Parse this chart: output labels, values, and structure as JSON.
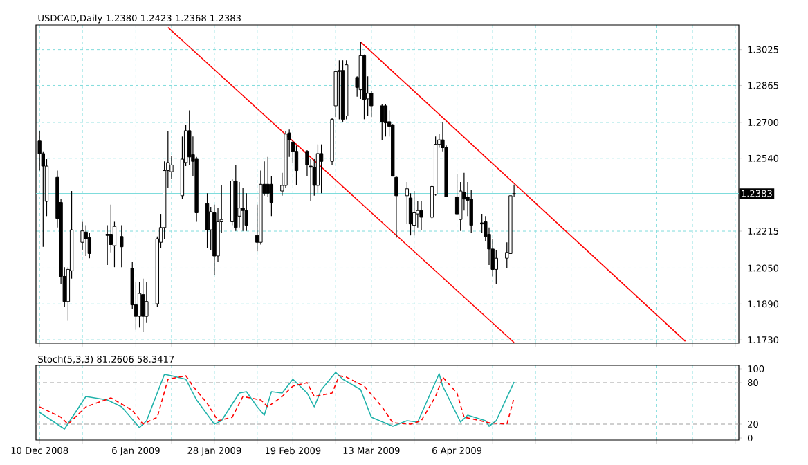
{
  "chart_data": [
    {
      "type": "candlestick",
      "title": "USDCAD,Daily 1.2380 1.2423 1.2368 1.2383",
      "x": [
        "2008-12-10",
        "2008-12-11",
        "2008-12-12",
        "2008-12-15",
        "2008-12-16",
        "2008-12-17",
        "2008-12-18",
        "2008-12-19",
        "2008-12-22",
        "2008-12-23",
        "2008-12-24",
        "2008-12-29",
        "2008-12-30",
        "2008-12-31",
        "2009-01-02",
        "2009-01-05",
        "2009-01-06",
        "2009-01-07",
        "2009-01-08",
        "2009-01-09",
        "2009-01-12",
        "2009-01-13",
        "2009-01-14",
        "2009-01-15",
        "2009-01-16",
        "2009-01-19",
        "2009-01-20",
        "2009-01-21",
        "2009-01-22",
        "2009-01-23",
        "2009-01-26",
        "2009-01-27",
        "2009-01-28",
        "2009-01-29",
        "2009-01-30",
        "2009-02-02",
        "2009-02-03",
        "2009-02-04",
        "2009-02-05",
        "2009-02-06",
        "2009-02-09",
        "2009-02-10",
        "2009-02-11",
        "2009-02-12",
        "2009-02-13",
        "2009-02-16",
        "2009-02-17",
        "2009-02-18",
        "2009-02-19",
        "2009-02-20",
        "2009-02-23",
        "2009-02-24",
        "2009-02-25",
        "2009-02-26",
        "2009-02-27",
        "2009-03-02",
        "2009-03-03",
        "2009-03-04",
        "2009-03-05",
        "2009-03-06",
        "2009-03-09",
        "2009-03-10",
        "2009-03-11",
        "2009-03-12",
        "2009-03-13",
        "2009-03-16",
        "2009-03-17",
        "2009-03-18",
        "2009-03-19",
        "2009-03-20",
        "2009-03-23",
        "2009-03-24",
        "2009-03-25",
        "2009-03-26",
        "2009-03-27",
        "2009-03-30",
        "2009-03-31",
        "2009-04-01",
        "2009-04-02",
        "2009-04-03",
        "2009-04-06",
        "2009-04-07",
        "2009-04-08",
        "2009-04-09",
        "2009-04-10",
        "2009-04-13",
        "2009-04-14",
        "2009-04-15",
        "2009-04-16",
        "2009-04-17",
        "2009-04-20",
        "2009-04-21",
        "2009-04-22"
      ],
      "ohlc": [
        [
          1.2617,
          1.2663,
          1.2485,
          1.2561
        ],
        [
          1.2561,
          1.2571,
          1.2145,
          1.2505
        ],
        [
          1.2348,
          1.2536,
          1.2282,
          1.2505
        ],
        [
          1.2455,
          1.2485,
          1.2231,
          1.2272
        ],
        [
          1.2343,
          1.2358,
          1.1977,
          1.2013
        ],
        [
          1.2013,
          1.2054,
          1.1876,
          1.1901
        ],
        [
          1.1901,
          1.2054,
          1.1815,
          1.2044
        ],
        [
          1.2038,
          1.2394,
          1.2003,
          1.2221
        ],
        [
          1.2165,
          1.2257,
          1.213,
          1.2216
        ],
        [
          1.2211,
          1.2241,
          1.2104,
          1.2181
        ],
        [
          1.2186,
          1.2206,
          1.2094,
          1.2115
        ],
        [
          1.2201,
          1.2241,
          1.2064,
          1.2196
        ],
        [
          1.2201,
          1.2333,
          1.212,
          1.2155
        ],
        [
          1.215,
          1.2257,
          1.2054,
          1.2236
        ],
        [
          1.2191,
          1.2241,
          1.2054,
          1.2145
        ],
        [
          1.2049,
          1.2079,
          1.1866,
          1.1886
        ],
        [
          1.1886,
          1.1988,
          1.1775,
          1.1835
        ],
        [
          1.1835,
          1.1988,
          1.1785,
          1.1937
        ],
        [
          1.1932,
          1.2003,
          1.1764,
          1.1835
        ],
        [
          1.1835,
          1.1988,
          1.1805,
          1.1901
        ],
        [
          1.1891,
          1.2191,
          1.1876,
          1.2181
        ],
        [
          1.2165,
          1.2292,
          1.214,
          1.2231
        ],
        [
          1.2231,
          1.2526,
          1.2181,
          1.2485
        ],
        [
          1.2485,
          1.2663,
          1.2409,
          1.2521
        ],
        [
          1.248,
          1.2551,
          1.245,
          1.251
        ],
        [
          1.2373,
          1.2637,
          1.2358,
          1.2536
        ],
        [
          1.2521,
          1.2688,
          1.2505,
          1.2663
        ],
        [
          1.2663,
          1.2754,
          1.251,
          1.2546
        ],
        [
          1.2556,
          1.2637,
          1.246,
          1.2526
        ],
        [
          1.2536,
          1.2546,
          1.2257,
          1.2297
        ],
        [
          1.2338,
          1.2384,
          1.214,
          1.2221
        ],
        [
          1.2221,
          1.2323,
          1.213,
          1.2302
        ],
        [
          1.2297,
          1.2333,
          1.2018,
          1.2104
        ],
        [
          1.2104,
          1.2318,
          1.2079,
          1.2257
        ],
        [
          1.2257,
          1.2419,
          1.2206,
          1.2267
        ],
        [
          1.2257,
          1.245,
          1.2241,
          1.2439
        ],
        [
          1.2439,
          1.251,
          1.2216,
          1.2231
        ],
        [
          1.2282,
          1.2434,
          1.2231,
          1.2318
        ],
        [
          1.2318,
          1.2409,
          1.2216,
          1.2307
        ],
        [
          1.2307,
          1.2384,
          1.2216,
          1.2241
        ],
        [
          1.2196,
          1.2333,
          1.2125,
          1.2165
        ],
        [
          1.2165,
          1.2485,
          1.2155,
          1.2424
        ],
        [
          1.2424,
          1.2526,
          1.2373,
          1.2384
        ],
        [
          1.2424,
          1.2546,
          1.2368,
          1.2384
        ],
        [
          1.2424,
          1.246,
          1.2282,
          1.2343
        ],
        [
          1.2394,
          1.2475,
          1.2373,
          1.2419
        ],
        [
          1.2419,
          1.2663,
          1.2409,
          1.2648
        ],
        [
          1.2653,
          1.2668,
          1.2546,
          1.2622
        ],
        [
          1.2612,
          1.2622,
          1.2521,
          1.2571
        ],
        [
          1.2571,
          1.2597,
          1.2419,
          1.2485
        ],
        [
          1.2571,
          1.2576,
          1.246,
          1.251
        ],
        [
          1.2505,
          1.2536,
          1.2348,
          1.25
        ],
        [
          1.25,
          1.2536,
          1.2373,
          1.2419
        ],
        [
          1.2419,
          1.2602,
          1.2384,
          1.2561
        ],
        [
          1.2561,
          1.2602,
          1.2384,
          1.2526
        ],
        [
          1.2526,
          1.2719,
          1.251,
          1.2714
        ],
        [
          1.2774,
          1.2927,
          1.2724,
          1.2927
        ],
        [
          1.2927,
          1.2977,
          1.2714,
          1.2932
        ],
        [
          1.2932,
          1.2977,
          1.2703,
          1.2714
        ],
        [
          1.2729,
          1.2977,
          1.2714,
          1.2957
        ],
        [
          1.2901,
          1.2906,
          1.2815,
          1.2856
        ],
        [
          1.2846,
          1.3059,
          1.2805,
          1.2998
        ],
        [
          1.2998,
          1.3003,
          1.2714,
          1.28
        ],
        [
          1.2805,
          1.2906,
          1.2729,
          1.283
        ],
        [
          1.283,
          1.284,
          1.2724,
          1.2774
        ],
        [
          1.2774,
          1.278,
          1.2622,
          1.2703
        ],
        [
          1.2774,
          1.278,
          1.2637,
          1.2698
        ],
        [
          1.2703,
          1.2754,
          1.2637,
          1.2683
        ],
        [
          1.2688,
          1.2693,
          1.246,
          1.246
        ],
        [
          1.2455,
          1.246,
          1.2186,
          1.2373
        ],
        [
          1.2373,
          1.2434,
          1.2247,
          1.2404
        ],
        [
          1.2363,
          1.2384,
          1.2196,
          1.2247
        ],
        [
          1.2241,
          1.2394,
          1.2196,
          1.2297
        ],
        [
          1.2292,
          1.2348,
          1.2231,
          1.2307
        ],
        [
          1.2307,
          1.2348,
          1.2221,
          1.2277
        ],
        [
          1.2277,
          1.2419,
          1.2267,
          1.2414
        ],
        [
          1.2379,
          1.2637,
          1.2373,
          1.2602
        ],
        [
          1.2602,
          1.2648,
          1.2587,
          1.2622
        ],
        [
          1.2622,
          1.2703,
          1.2571,
          1.2587
        ],
        [
          1.2587,
          1.2597,
          1.2368,
          1.2368
        ],
        [
          1.2368,
          1.247,
          1.2292,
          1.2292
        ],
        [
          1.2267,
          1.2434,
          1.2216,
          1.2394
        ],
        [
          1.2389,
          1.2475,
          1.2307,
          1.2358
        ],
        [
          1.2368,
          1.2434,
          1.2282,
          1.2353
        ],
        [
          1.2358,
          1.2399,
          1.2206,
          1.2241
        ],
        [
          1.2252,
          1.2292,
          1.2206,
          1.2247
        ],
        [
          1.2257,
          1.2282,
          1.217,
          1.2191
        ],
        [
          1.2201,
          1.2231,
          1.2064,
          1.2135
        ],
        [
          1.2135,
          1.2181,
          1.2013,
          1.2044
        ],
        [
          1.2044,
          1.213,
          1.1977,
          1.2094
        ],
        [
          1.2094,
          1.2165,
          1.2049,
          1.212
        ],
        [
          1.2115,
          1.2373,
          1.2115,
          1.2373
        ],
        [
          1.238,
          1.2423,
          1.2368,
          1.2383
        ]
      ],
      "series": [
        {
          "type": "line",
          "color": "#ff0000",
          "x": [
            "2009-01-15",
            "2009-04-22"
          ],
          "values": [
            1.3124,
            1.1718
          ]
        },
        {
          "type": "line",
          "color": "#ff0000",
          "x": [
            "2009-03-10",
            "2009-06-09"
          ],
          "values": [
            1.3059,
            1.1724
          ]
        }
      ],
      "xlim": [
        "2008-12-09",
        "2009-06-24"
      ],
      "xticks": [
        {
          "value": "2008-12-10",
          "label": null
        },
        {
          "value": "2008-12-22",
          "label": null
        },
        {
          "value": "2009-01-06",
          "label": null
        },
        {
          "value": "2009-01-16",
          "label": null
        },
        {
          "value": "2009-01-28",
          "label": null
        },
        {
          "value": "2009-02-09",
          "label": null
        },
        {
          "value": "2009-02-19",
          "label": null
        },
        {
          "value": "2009-03-03",
          "label": null
        },
        {
          "value": "2009-03-13",
          "label": null
        },
        {
          "value": "2009-03-25",
          "label": null
        },
        {
          "value": "2009-04-06",
          "label": null
        },
        {
          "value": "2009-04-16",
          "label": null
        },
        {
          "value": "2009-04-28",
          "label": null
        },
        {
          "value": "2009-05-08",
          "label": null
        },
        {
          "value": "2009-05-20",
          "label": null
        },
        {
          "value": "2009-06-01",
          "label": null
        },
        {
          "value": "2009-06-11",
          "label": null
        },
        {
          "value": "2009-06-23",
          "label": null
        }
      ],
      "ylim": [
        1.1715,
        1.3135
      ],
      "yticks": [
        {
          "value": 1.173,
          "label": "1.1730"
        },
        {
          "value": 1.189,
          "label": "1.1890"
        },
        {
          "value": 1.205,
          "label": "1.2050"
        },
        1.2215,
        {
          "value": 1.254,
          "label": "1.2540"
        },
        {
          "value": 1.27,
          "label": "1.2700"
        },
        1.2865,
        1.3025
      ],
      "grid": true,
      "tick_labels": "y",
      "ref_lines": [
        {
          "axis": "y",
          "value": 1.2383,
          "label": "1.2383",
          "color": "#7fdcdc"
        }
      ]
    },
    {
      "type": "line",
      "title": "Stoch(5,3,3) 81.2606 58.3417",
      "series": [
        {
          "color": "#20b2aa",
          "line_style": "solid",
          "x": [
            "2008-12-10",
            "2008-12-17",
            "2008-12-23",
            "2008-12-29",
            "2009-01-02",
            "2009-01-07",
            "2009-01-09",
            "2009-01-14",
            "2009-01-16",
            "2009-01-20",
            "2009-01-23",
            "2009-01-28",
            "2009-01-30",
            "2009-02-04",
            "2009-02-06",
            "2009-02-09",
            "2009-02-11",
            "2009-02-13",
            "2009-02-16",
            "2009-02-19",
            "2009-02-23",
            "2009-02-25",
            "2009-02-27",
            "2009-03-03",
            "2009-03-05",
            "2009-03-10",
            "2009-03-13",
            "2009-03-19",
            "2009-03-23",
            "2009-03-26",
            "2009-04-01",
            "2009-04-02",
            "2009-04-07",
            "2009-04-09",
            "2009-04-14",
            "2009-04-15",
            "2009-04-17",
            "2009-04-22"
          ],
          "values": [
            37,
            13,
            60,
            55,
            45,
            15,
            25,
            92,
            90,
            85,
            55,
            20,
            25,
            65,
            67,
            45,
            33,
            67,
            65,
            85,
            65,
            45,
            70,
            95,
            85,
            70,
            30,
            17,
            25,
            23,
            93,
            75,
            23,
            33,
            25,
            17,
            25,
            81
          ]
        },
        {
          "color": "#ff0000",
          "line_style": "dashed",
          "x": [
            "2008-12-10",
            "2008-12-16",
            "2008-12-18",
            "2008-12-23",
            "2008-12-30",
            "2009-01-05",
            "2009-01-08",
            "2009-01-12",
            "2009-01-15",
            "2009-01-20",
            "2009-01-22",
            "2009-01-26",
            "2009-01-29",
            "2009-02-02",
            "2009-02-05",
            "2009-02-10",
            "2009-02-12",
            "2009-02-16",
            "2009-02-19",
            "2009-02-23",
            "2009-02-25",
            "2009-03-02",
            "2009-03-04",
            "2009-03-06",
            "2009-03-11",
            "2009-03-16",
            "2009-03-19",
            "2009-03-24",
            "2009-03-27",
            "2009-03-31",
            "2009-04-02",
            "2009-04-06",
            "2009-04-08",
            "2009-04-10",
            "2009-04-15",
            "2009-04-20",
            "2009-04-22"
          ],
          "values": [
            45,
            30,
            20,
            45,
            58,
            40,
            20,
            30,
            85,
            90,
            75,
            50,
            25,
            30,
            60,
            55,
            45,
            60,
            75,
            80,
            60,
            65,
            90,
            88,
            75,
            45,
            22,
            20,
            25,
            60,
            88,
            65,
            30,
            28,
            22,
            20,
            58
          ]
        }
      ],
      "xlim": [
        "2008-12-09",
        "2009-06-24"
      ],
      "xticks": [
        {
          "value": "2008-12-10",
          "label": "10 Dec 2008"
        },
        {
          "value": "2008-12-22",
          "label": null
        },
        {
          "value": "2009-01-06",
          "label": "6 Jan 2009"
        },
        {
          "value": "2009-01-16",
          "label": null
        },
        {
          "value": "2009-01-28",
          "label": "28 Jan 2009"
        },
        {
          "value": "2009-02-09",
          "label": null
        },
        {
          "value": "2009-02-19",
          "label": "19 Feb 2009"
        },
        {
          "value": "2009-03-03",
          "label": null
        },
        {
          "value": "2009-03-13",
          "label": "13 Mar 2009"
        },
        {
          "value": "2009-03-25",
          "label": null
        },
        {
          "value": "2009-04-06",
          "label": "6 Apr 2009"
        },
        {
          "value": "2009-04-16",
          "label": null
        },
        {
          "value": "2009-04-28",
          "label": null
        },
        {
          "value": "2009-05-08",
          "label": null
        },
        {
          "value": "2009-05-20",
          "label": null
        },
        {
          "value": "2009-06-01",
          "label": null
        },
        {
          "value": "2009-06-11",
          "label": null
        },
        {
          "value": "2009-06-23",
          "label": null
        }
      ],
      "ylim": [
        -3,
        105
      ],
      "yticks": [
        0,
        20,
        80,
        100
      ],
      "grid": "x",
      "ref_lines": [
        {
          "axis": "y",
          "value": 20,
          "color": "#a0a0a0",
          "line_style": "dashed"
        },
        {
          "axis": "y",
          "value": 80,
          "color": "#a0a0a0",
          "line_style": "dashed"
        }
      ]
    }
  ]
}
